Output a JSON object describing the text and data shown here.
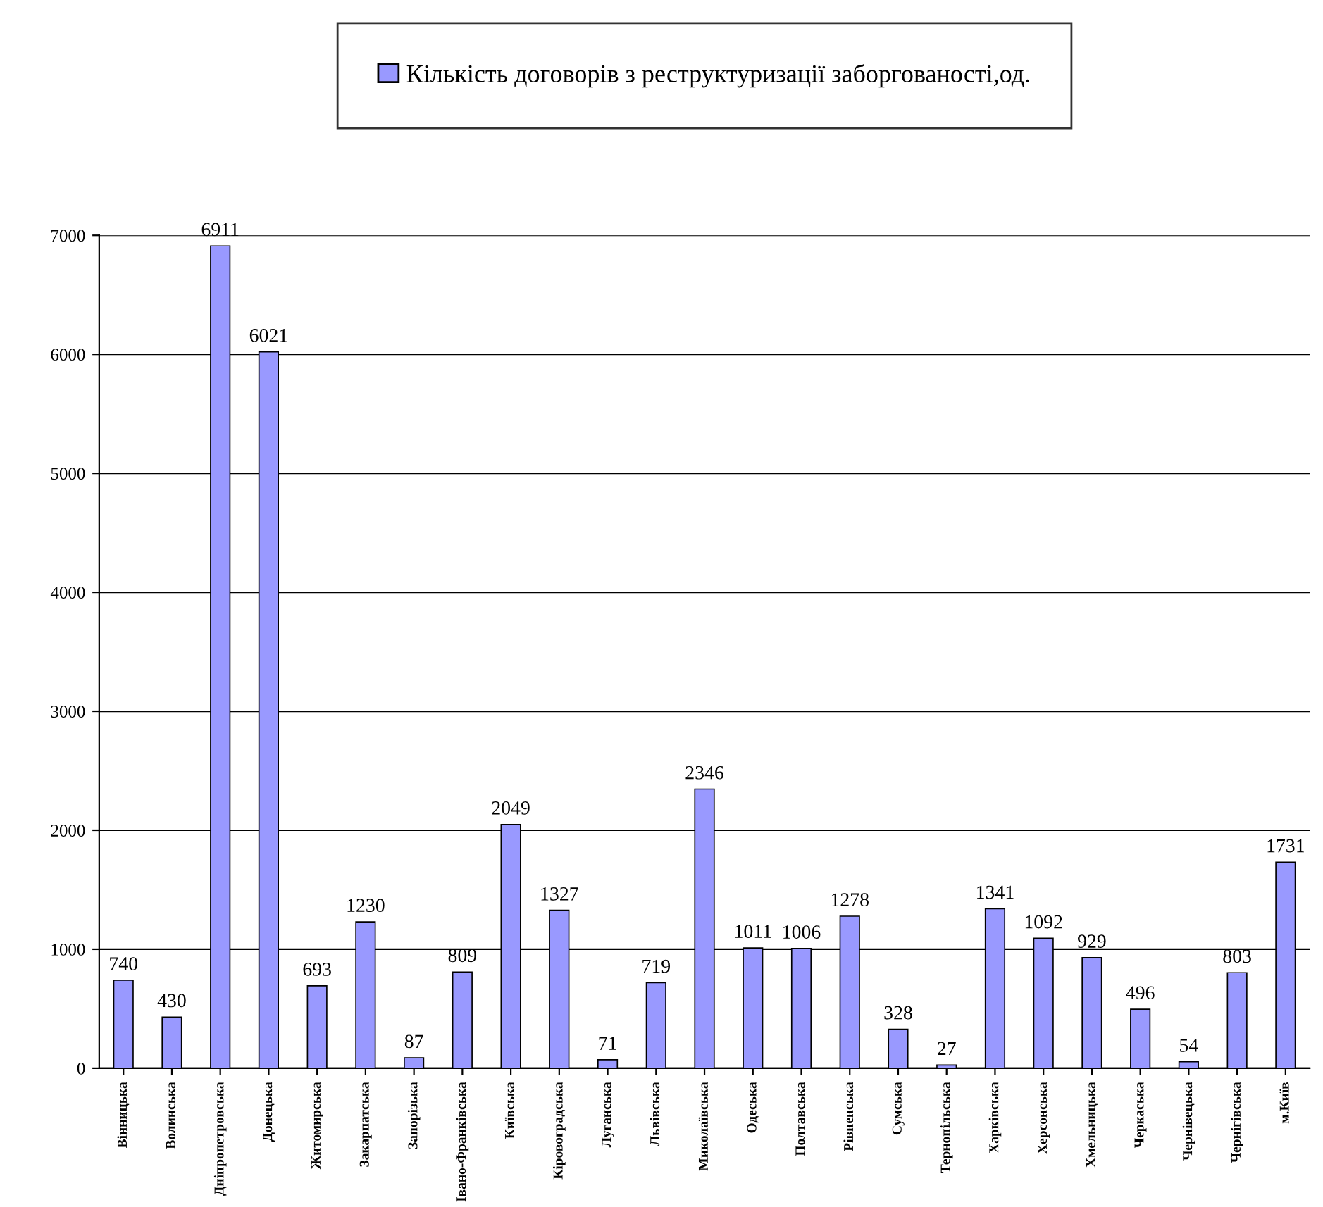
{
  "chart_data": {
    "type": "bar",
    "categories": [
      "Вінницька",
      "Волинська",
      "Дніпропетровська",
      "Донецька",
      "Житомирська",
      "Закарпатська",
      "Запорізька",
      "Івано-Франківська",
      "Київська",
      "Кіровоградська",
      "Луганська",
      "Львівська",
      "Миколаївська",
      "Одеська",
      "Полтавська",
      "Рівненська",
      "Сумська",
      "Тернопільська",
      "Харківська",
      "Херсонська",
      "Хмельницька",
      "Черкаська",
      "Чернівецька",
      "Чернігівська",
      "м.Київ"
    ],
    "series": [
      {
        "name": "Кількість договорів з реструктуризації заборгованості,од.",
        "color": "#9999ff",
        "values": [
          740,
          430,
          6911,
          6021,
          693,
          1230,
          87,
          809,
          2049,
          1327,
          71,
          719,
          2346,
          1011,
          1006,
          1278,
          328,
          27,
          1341,
          1092,
          929,
          496,
          54,
          803,
          1731
        ]
      }
    ],
    "ylim": [
      0,
      7000
    ],
    "yticks": [
      0,
      1000,
      2000,
      3000,
      4000,
      5000,
      6000,
      7000
    ],
    "grid": "y",
    "legend": "top",
    "data_labels": true
  }
}
